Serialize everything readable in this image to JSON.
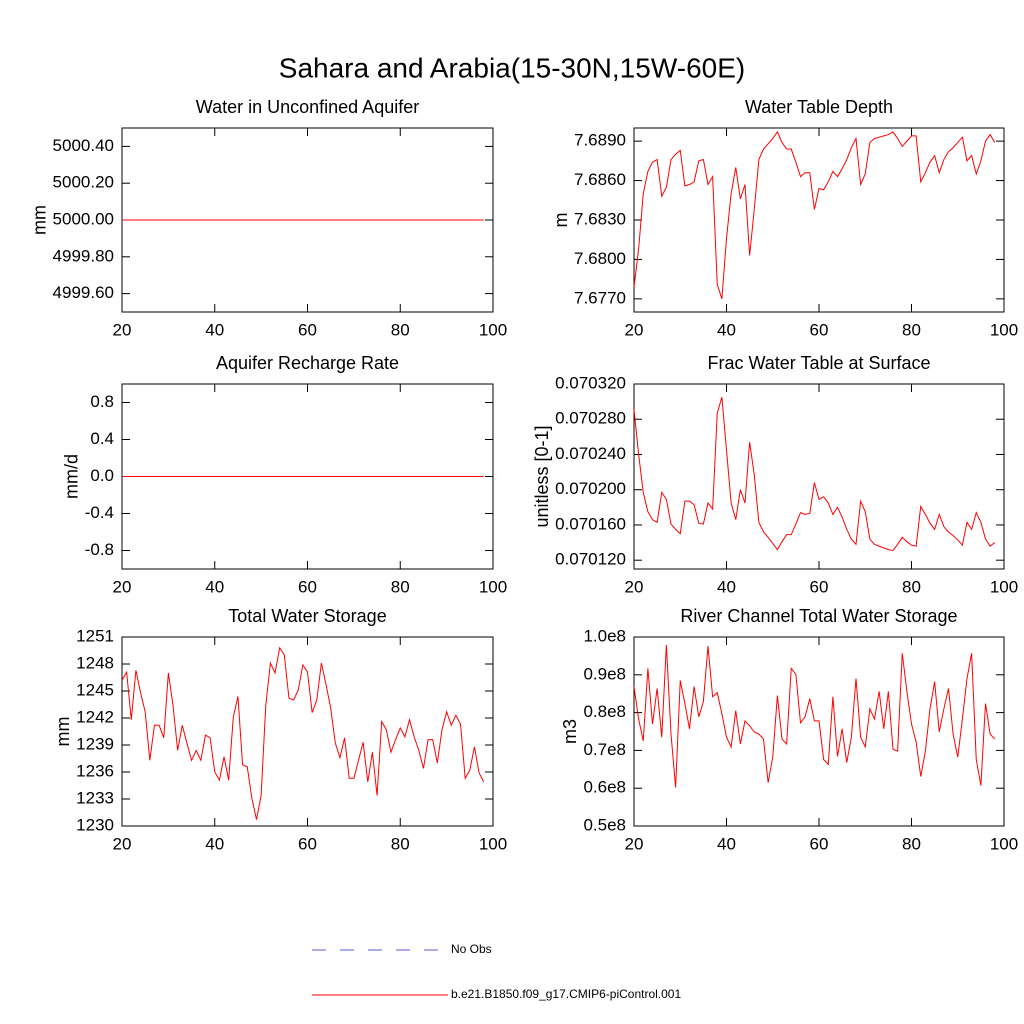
{
  "title": "Sahara and Arabia(15-30N,15W-60E)",
  "legend": [
    {
      "label": "No Obs",
      "color": "#5a5ad6",
      "dashed": true
    },
    {
      "label": "b.e21.B1850.f09_g17.CMIP6-piControl.001",
      "color": "#ff0000",
      "dashed": false
    }
  ],
  "chart_data": [
    {
      "type": "line",
      "title": "Water in Unconfined Aquifer",
      "y_label": "mm",
      "x": [
        20,
        98
      ],
      "series": [
        {
          "color": "#ff0000",
          "values": [
            5000,
            5000
          ]
        }
      ],
      "xlim": [
        20,
        100
      ],
      "xticks": [
        20,
        40,
        60,
        80,
        100
      ],
      "ylim": [
        4999.5,
        5000.5
      ],
      "yticks": [
        {
          "value": 4999.6,
          "label": "4999.60"
        },
        {
          "value": 4999.8,
          "label": "4999.80"
        },
        {
          "value": 5000,
          "label": "5000.00"
        },
        {
          "value": 5000.2,
          "label": "5000.20"
        },
        {
          "value": 5000.4,
          "label": "5000.40"
        }
      ]
    },
    {
      "type": "line",
      "title": "Water Table Depth",
      "y_label": "m",
      "x": [
        20,
        21,
        22,
        23,
        24,
        25,
        26,
        27,
        28,
        29,
        30,
        31,
        32,
        33,
        34,
        35,
        36,
        37,
        38,
        39,
        40,
        41,
        42,
        43,
        44,
        45,
        46,
        47,
        48,
        49,
        50,
        51,
        52,
        53,
        54,
        55,
        56,
        57,
        58,
        59,
        60,
        61,
        62,
        63,
        64,
        65,
        66,
        67,
        68,
        69,
        70,
        71,
        72,
        73,
        74,
        75,
        76,
        77,
        78,
        79,
        80,
        81,
        82,
        83,
        84,
        85,
        86,
        87,
        88,
        89,
        90,
        91,
        92,
        93,
        94,
        95,
        96,
        97,
        98
      ],
      "series": [
        {
          "color": "#ff0000",
          "values": [
            7.6779,
            7.6808,
            7.685,
            7.6867,
            7.6874,
            7.6876,
            7.6848,
            7.6855,
            7.6876,
            7.688,
            7.6883,
            7.6856,
            7.6857,
            7.6859,
            7.6875,
            7.6876,
            7.6857,
            7.6863,
            7.6781,
            7.677,
            7.6816,
            7.685,
            7.687,
            7.6846,
            7.6857,
            7.6803,
            7.6838,
            7.6876,
            7.6884,
            7.6888,
            7.6892,
            7.6897,
            7.6889,
            7.6884,
            7.6884,
            7.6874,
            7.6863,
            7.6866,
            7.6866,
            7.6838,
            7.6854,
            7.6853,
            7.6859,
            7.6867,
            7.6863,
            7.6869,
            7.6876,
            7.6885,
            7.6892,
            7.6857,
            7.6865,
            7.6889,
            7.6892,
            7.6893,
            7.6894,
            7.6895,
            7.6897,
            7.6892,
            7.6886,
            7.689,
            7.6894,
            7.6894,
            7.6859,
            7.6866,
            7.6874,
            7.6879,
            7.6866,
            7.6876,
            7.6882,
            7.6885,
            7.6889,
            7.6893,
            7.6875,
            7.6879,
            7.6865,
            7.6875,
            7.689,
            7.6895,
            7.6889
          ]
        }
      ],
      "xlim": [
        20,
        100
      ],
      "xticks": [
        20,
        40,
        60,
        80,
        100
      ],
      "ylim": [
        7.676,
        7.69
      ],
      "yticks": [
        {
          "value": 7.677,
          "label": "7.6770"
        },
        {
          "value": 7.68,
          "label": "7.6800"
        },
        {
          "value": 7.683,
          "label": "7.6830"
        },
        {
          "value": 7.686,
          "label": "7.6860"
        },
        {
          "value": 7.689,
          "label": "7.6890"
        }
      ]
    },
    {
      "type": "line",
      "title": "Aquifer Recharge Rate",
      "y_label": "mm/d",
      "x": [
        20,
        98
      ],
      "series": [
        {
          "color": "#ff0000",
          "values": [
            0,
            0
          ]
        }
      ],
      "xlim": [
        20,
        100
      ],
      "xticks": [
        20,
        40,
        60,
        80,
        100
      ],
      "ylim": [
        -1,
        1
      ],
      "yticks": [
        -0.8,
        -0.4,
        {
          "value": 0,
          "label": "0.0"
        },
        0.4,
        0.8
      ]
    },
    {
      "type": "line",
      "title": "Frac Water Table at Surface",
      "y_label": "unitless [0-1]",
      "x": [
        20,
        21,
        22,
        23,
        24,
        25,
        26,
        27,
        28,
        29,
        30,
        31,
        32,
        33,
        34,
        35,
        36,
        37,
        38,
        39,
        40,
        41,
        42,
        43,
        44,
        45,
        46,
        47,
        48,
        49,
        50,
        51,
        52,
        53,
        54,
        55,
        56,
        57,
        58,
        59,
        60,
        61,
        62,
        63,
        64,
        65,
        66,
        67,
        68,
        69,
        70,
        71,
        72,
        73,
        74,
        75,
        76,
        77,
        78,
        79,
        80,
        81,
        82,
        83,
        84,
        85,
        86,
        87,
        88,
        89,
        90,
        91,
        92,
        93,
        94,
        95,
        96,
        97,
        98
      ],
      "series": [
        {
          "color": "#ff0000",
          "values": [
            0.070291,
            0.07024,
            0.070197,
            0.070175,
            0.070166,
            0.070163,
            0.070197,
            0.070189,
            0.070161,
            0.070155,
            0.07015,
            0.070187,
            0.070187,
            0.070183,
            0.070162,
            0.070161,
            0.070185,
            0.070178,
            0.070287,
            0.070305,
            0.070245,
            0.070185,
            0.070166,
            0.0702,
            0.070185,
            0.070254,
            0.070217,
            0.070163,
            0.070152,
            0.070146,
            0.070139,
            0.070132,
            0.070141,
            0.070149,
            0.070149,
            0.070161,
            0.070174,
            0.070172,
            0.070173,
            0.070208,
            0.070189,
            0.070192,
            0.070185,
            0.070172,
            0.07018,
            0.070169,
            0.070155,
            0.070144,
            0.070138,
            0.070187,
            0.070175,
            0.070144,
            0.070138,
            0.070136,
            0.070134,
            0.070132,
            0.070131,
            0.070138,
            0.070146,
            0.070141,
            0.070137,
            0.070136,
            0.070181,
            0.070172,
            0.070162,
            0.070155,
            0.070172,
            0.070158,
            0.070152,
            0.070148,
            0.070143,
            0.070137,
            0.070163,
            0.070155,
            0.070174,
            0.070163,
            0.070144,
            0.070136,
            0.07014
          ]
        }
      ],
      "xlim": [
        20,
        100
      ],
      "xticks": [
        20,
        40,
        60,
        80,
        100
      ],
      "ylim": [
        0.07011,
        0.07032
      ],
      "yticks": [
        {
          "value": 0.07012,
          "label": "0.070120"
        },
        {
          "value": 0.07016,
          "label": "0.070160"
        },
        {
          "value": 0.0702,
          "label": "0.070200"
        },
        {
          "value": 0.07024,
          "label": "0.070240"
        },
        {
          "value": 0.07028,
          "label": "0.070280"
        },
        {
          "value": 0.07032,
          "label": "0.070320"
        }
      ]
    },
    {
      "type": "line",
      "title": "Total Water Storage",
      "y_label": "mm",
      "x": [
        20,
        21,
        22,
        23,
        24,
        25,
        26,
        27,
        28,
        29,
        30,
        31,
        32,
        33,
        34,
        35,
        36,
        37,
        38,
        39,
        40,
        41,
        42,
        43,
        44,
        45,
        46,
        47,
        48,
        49,
        50,
        51,
        52,
        53,
        54,
        55,
        56,
        57,
        58,
        59,
        60,
        61,
        62,
        63,
        64,
        65,
        66,
        67,
        68,
        69,
        70,
        71,
        72,
        73,
        74,
        75,
        76,
        77,
        78,
        79,
        80,
        81,
        82,
        83,
        84,
        85,
        86,
        87,
        88,
        89,
        90,
        91,
        92,
        93,
        94,
        95,
        96,
        97,
        98
      ],
      "series": [
        {
          "color": "#ff0000",
          "values": [
            1246.2,
            1247.1,
            1241.8,
            1247.3,
            1244.8,
            1242.7,
            1237.3,
            1241.2,
            1241.2,
            1239.8,
            1247.0,
            1243.4,
            1238.4,
            1241.2,
            1239.2,
            1237.3,
            1238.4,
            1237.3,
            1240.1,
            1239.8,
            1236.0,
            1235.1,
            1237.7,
            1235.1,
            1242.1,
            1244.4,
            1236.8,
            1236.6,
            1233.1,
            1230.7,
            1233.4,
            1243.4,
            1248.1,
            1247.0,
            1249.8,
            1249.0,
            1244.2,
            1244.0,
            1245.1,
            1247.9,
            1247.1,
            1242.6,
            1244.0,
            1248.1,
            1245.7,
            1243.1,
            1239.2,
            1237.6,
            1239.8,
            1235.3,
            1235.3,
            1237.3,
            1239.3,
            1234.9,
            1238.2,
            1233.4,
            1241.6,
            1240.7,
            1238.2,
            1239.6,
            1240.9,
            1239.9,
            1241.8,
            1239.9,
            1238.4,
            1236.4,
            1239.6,
            1239.6,
            1237.0,
            1240.7,
            1242.7,
            1241.2,
            1242.3,
            1241.3,
            1235.3,
            1236.2,
            1238.8,
            1235.9,
            1234.9
          ]
        }
      ],
      "xlim": [
        20,
        100
      ],
      "xticks": [
        20,
        40,
        60,
        80,
        100
      ],
      "ylim": [
        1230,
        1251
      ],
      "yticks": [
        1230,
        1233,
        1236,
        1239,
        1242,
        1245,
        1248,
        1251
      ]
    },
    {
      "type": "line",
      "title": "River Channel Total Water Storage",
      "y_label": "m3",
      "x": [
        20,
        21,
        22,
        23,
        24,
        25,
        26,
        27,
        28,
        29,
        30,
        31,
        32,
        33,
        34,
        35,
        36,
        37,
        38,
        39,
        40,
        41,
        42,
        43,
        44,
        45,
        46,
        47,
        48,
        49,
        50,
        51,
        52,
        53,
        54,
        55,
        56,
        57,
        58,
        59,
        60,
        61,
        62,
        63,
        64,
        65,
        66,
        67,
        68,
        69,
        70,
        71,
        72,
        73,
        74,
        75,
        76,
        77,
        78,
        79,
        80,
        81,
        82,
        83,
        84,
        85,
        86,
        87,
        88,
        89,
        90,
        91,
        92,
        93,
        94,
        95,
        96,
        97,
        98
      ],
      "series": [
        {
          "color": "#ff0000",
          "values": [
            86900000,
            78300000,
            72500000,
            91700000,
            77000000,
            86400000,
            73500000,
            97900000,
            74300000,
            60200000,
            88500000,
            82400000,
            75700000,
            86900000,
            78900000,
            82900000,
            97600000,
            84200000,
            85300000,
            79700000,
            73500000,
            70900000,
            80500000,
            71700000,
            77800000,
            76500000,
            74900000,
            74300000,
            73000000,
            61500000,
            68200000,
            84500000,
            73000000,
            71700000,
            91700000,
            90100000,
            77300000,
            78900000,
            83700000,
            77800000,
            77800000,
            67600000,
            66300000,
            84200000,
            68400000,
            75700000,
            66800000,
            73500000,
            89000000,
            73500000,
            70900000,
            81000000,
            78300000,
            85600000,
            75700000,
            85600000,
            70300000,
            69800000,
            95700000,
            85600000,
            77000000,
            72200000,
            63100000,
            69800000,
            81000000,
            88200000,
            74900000,
            81000000,
            86400000,
            74300000,
            68200000,
            78300000,
            89000000,
            95700000,
            67600000,
            60700000,
            82400000,
            74300000,
            73000000
          ]
        }
      ],
      "xlim": [
        20,
        100
      ],
      "xticks": [
        20,
        40,
        60,
        80,
        100
      ],
      "ylim": [
        50000000,
        100000000
      ],
      "yticks": [
        {
          "value": 50000000,
          "label": "0.5e8"
        },
        {
          "value": 60000000,
          "label": "0.6e8"
        },
        {
          "value": 70000000,
          "label": "0.7e8"
        },
        {
          "value": 80000000,
          "label": "0.8e8"
        },
        {
          "value": 90000000,
          "label": "0.9e8"
        },
        {
          "value": 100000000,
          "label": "1.0e8"
        }
      ]
    }
  ]
}
